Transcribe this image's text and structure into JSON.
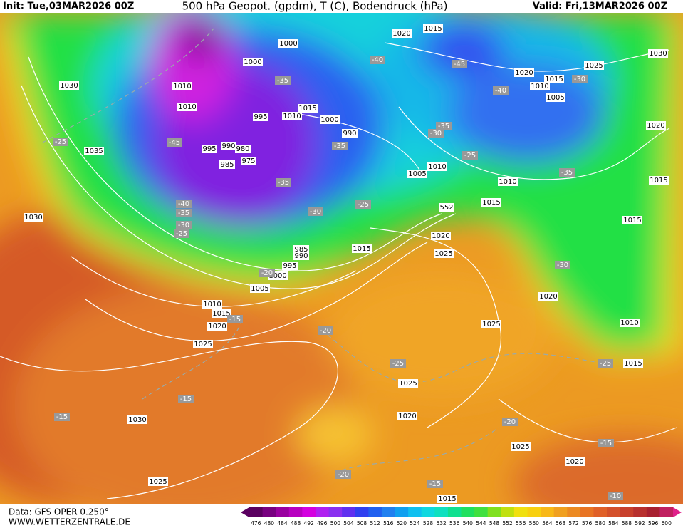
{
  "header": {
    "init": "Init: Tue,03MAR2026 00Z",
    "title": "500 hPa Geopot. (gpdm), T (C), Bodendruck (hPa)",
    "valid": "Valid: Fri,13MAR2026 00Z"
  },
  "map": {
    "pressure_labels": [
      1030,
      1035,
      1030,
      1010,
      1010,
      1000,
      1000,
      995,
      995,
      990,
      980,
      985,
      975,
      1015,
      1010,
      1000,
      990,
      1020,
      1015,
      1030,
      1025,
      1020,
      1015,
      1010,
      1005,
      1020,
      1015,
      1005,
      1010,
      1010,
      1015,
      552,
      1020,
      1025,
      1015,
      985,
      990,
      995,
      1000,
      1005,
      1010,
      1015,
      1020,
      1025,
      1015,
      1020,
      1010,
      1025,
      1015,
      1025,
      1020,
      1030,
      1025,
      1025,
      1020,
      1015
    ],
    "temperature_labels": [
      -25,
      -25,
      -35,
      -35,
      -35,
      -30,
      -25,
      -40,
      -35,
      -30,
      -25,
      -45,
      -35,
      -40,
      -45,
      -40,
      -30,
      -35,
      -30,
      -30,
      -20,
      -15,
      -25,
      -25,
      -15,
      -15,
      -20,
      -15,
      -20,
      -15,
      -10,
      -20
    ]
  },
  "legend": {
    "levels": [
      476,
      480,
      484,
      488,
      492,
      496,
      500,
      504,
      508,
      512,
      516,
      520,
      524,
      528,
      532,
      536,
      540,
      544,
      548,
      552,
      556,
      560,
      564,
      568,
      572,
      576,
      580,
      584,
      588,
      592,
      596,
      600
    ]
  },
  "footer": {
    "source": "Data: GFS OPER 0.250°",
    "website": "WWW.WETTERZENTRALE.DE"
  }
}
